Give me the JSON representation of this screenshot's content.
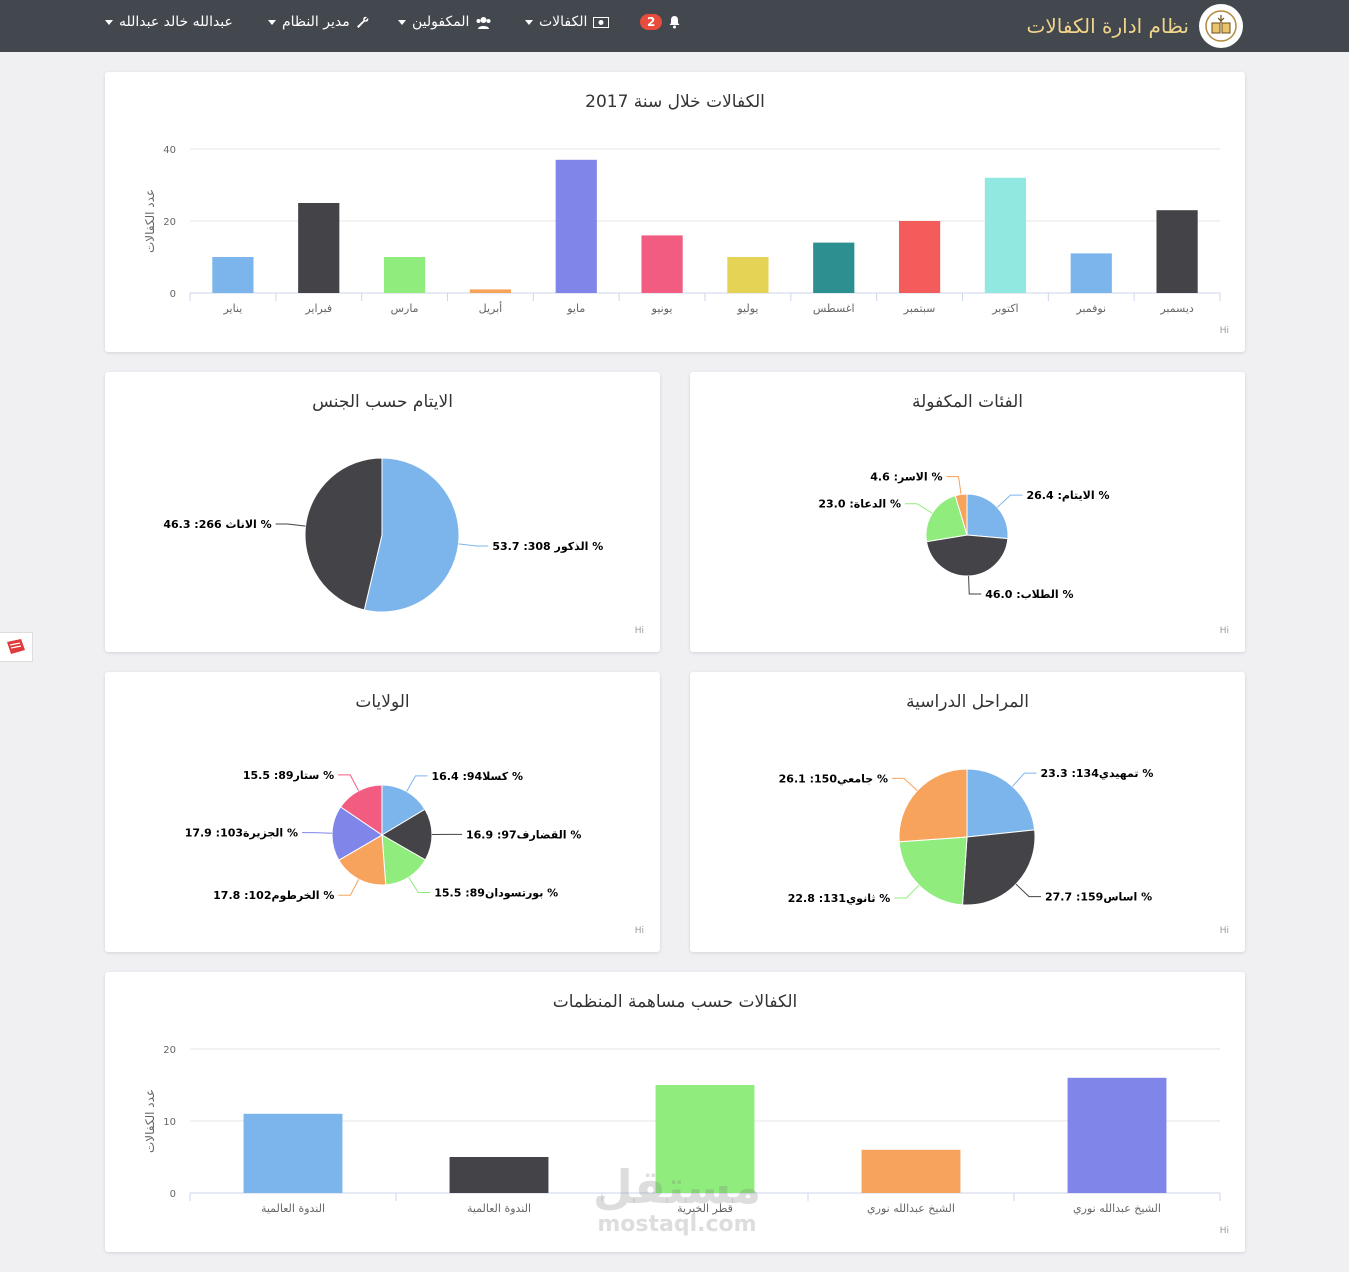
{
  "navbar": {
    "brand": "نظام ادارة الكفالات",
    "notifications_count": "2",
    "menu": [
      {
        "label": "الكفالات",
        "icon": "money-icon"
      },
      {
        "label": "المكفولين",
        "icon": "users-icon"
      },
      {
        "label": "مدير النظام",
        "icon": "wrench-icon"
      },
      {
        "label": "عبدالله خالد عبدالله",
        "icon": ""
      }
    ]
  },
  "credits": "Hi",
  "watermark": {
    "arabic": "مستقل",
    "latin": "mostaql.com"
  },
  "chart_data": [
    {
      "type": "bar",
      "title": "الكفالات خلال سنة 2017",
      "ylabel": "عدد الكفالات",
      "ylim": [
        0,
        40
      ],
      "yticks": [
        0,
        20,
        40
      ],
      "categories": [
        "يناير",
        "فبراير",
        "مارس",
        "أبريل",
        "مايو",
        "يونيو",
        "يوليو",
        "اغسطس",
        "سبتمبر",
        "اكتوبر",
        "نوفمبر",
        "ديسمبر"
      ],
      "values": [
        10,
        25,
        10,
        1,
        37,
        16,
        10,
        14,
        20,
        32,
        11,
        23
      ],
      "colors": [
        "#7cb5ec",
        "#434348",
        "#90ed7d",
        "#f7a35c",
        "#8085e9",
        "#f15c80",
        "#e4d354",
        "#2b908f",
        "#f45b5b",
        "#91e8e1",
        "#7cb5ec",
        "#434348"
      ]
    },
    {
      "type": "pie",
      "title": "الفئات المكفولة",
      "slices": [
        {
          "name": "الايتام",
          "value": 26.4,
          "label": "الايتام: 26.4 %",
          "color": "#7cb5ec"
        },
        {
          "name": "الطلاب",
          "value": 46.0,
          "label": "الطلاب: 46.0 %",
          "color": "#434348"
        },
        {
          "name": "الدعاة",
          "value": 23.0,
          "label": "الدعاة: 23.0 %",
          "color": "#90ed7d"
        },
        {
          "name": "الاسر",
          "value": 4.6,
          "label": "الاسر: 4.6 %",
          "color": "#f7a35c"
        }
      ]
    },
    {
      "type": "pie",
      "title": "الايتام حسب الجنس",
      "slices": [
        {
          "name": "الذكور",
          "value": 53.7,
          "label": "الذكور 308: 53.7 %",
          "color": "#7cb5ec"
        },
        {
          "name": "الاناث",
          "value": 46.3,
          "label": "الاناث 266: 46.3 %",
          "color": "#434348"
        }
      ]
    },
    {
      "type": "pie",
      "title": "المراحل الدراسية",
      "slices": [
        {
          "name": "تمهيدي",
          "value": 23.3,
          "label": "تمهيدي134: 23.3 %",
          "color": "#7cb5ec"
        },
        {
          "name": "اساس",
          "value": 27.7,
          "label": "اساس159: 27.7 %",
          "color": "#434348"
        },
        {
          "name": "ثانوي",
          "value": 22.8,
          "label": "ثانوي131: 22.8 %",
          "color": "#90ed7d"
        },
        {
          "name": "جامعي",
          "value": 26.1,
          "label": "جامعي150: 26.1 %",
          "color": "#f7a35c"
        }
      ]
    },
    {
      "type": "pie",
      "title": "الولايات",
      "slices": [
        {
          "name": "كسلا",
          "value": 16.4,
          "label": "كسلا94: 16.4 %",
          "color": "#7cb5ec"
        },
        {
          "name": "القضارف",
          "value": 16.9,
          "label": "القضارف97: 16.9 %",
          "color": "#434348"
        },
        {
          "name": "بورتسودان",
          "value": 15.5,
          "label": "بورتسودان89: 15.5 %",
          "color": "#90ed7d"
        },
        {
          "name": "الخرطوم",
          "value": 17.8,
          "label": "الخرطوم102: 17.8 %",
          "color": "#f7a35c"
        },
        {
          "name": "الجزيرة",
          "value": 17.9,
          "label": "الجزيرة103: 17.9 %",
          "color": "#8085e9"
        },
        {
          "name": "ستار",
          "value": 15.5,
          "label": "ستار89: 15.5 %",
          "color": "#f15c80"
        }
      ]
    },
    {
      "type": "bar",
      "title": "الكفالات حسب مساهمة المنظمات",
      "ylabel": "عدد الكفالات",
      "ylim": [
        0,
        20
      ],
      "yticks": [
        0,
        10,
        20
      ],
      "categories": [
        "الندوة العالمية",
        "الندوة العالمية",
        "قطر الخيرية",
        "الشيخ عبدالله نوري",
        "الشيخ عبدالله نوري"
      ],
      "values": [
        11,
        5,
        15,
        6,
        16
      ],
      "colors": [
        "#7cb5ec",
        "#434348",
        "#90ed7d",
        "#f7a35c",
        "#8085e9"
      ]
    }
  ]
}
